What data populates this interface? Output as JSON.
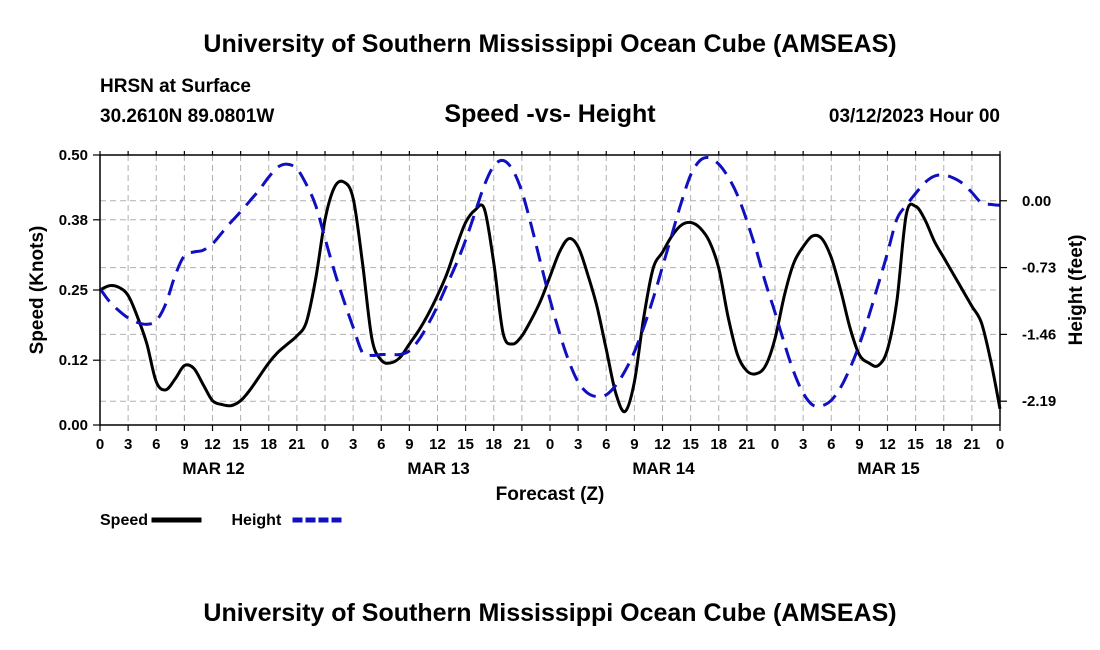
{
  "header": {
    "title": "University of Southern Mississippi Ocean Cube (AMSEAS)",
    "station": "HRSN at Surface",
    "coords": "30.2610N  89.0801W",
    "subtitle": "Speed -vs- Height",
    "datetime": "03/12/2023 Hour 00"
  },
  "footer": {
    "title": "University of Southern Mississippi Ocean Cube (AMSEAS)"
  },
  "colors": {
    "speed": "#000000",
    "height": "#1010c0",
    "grid": "#b0b0b0"
  },
  "chart_data": {
    "type": "line",
    "title": "Speed -vs- Height",
    "xlabel": "Forecast (Z)",
    "ylabel": "Speed (Knots)",
    "y2label": "Height (feet)",
    "xlim": [
      0,
      96
    ],
    "ylim": [
      0,
      0.5
    ],
    "y2lim": [
      -2.45,
      0.5
    ],
    "x_ticks": [
      0,
      3,
      6,
      9,
      12,
      15,
      18,
      21,
      24,
      27,
      30,
      33,
      36,
      39,
      42,
      45,
      48,
      51,
      54,
      57,
      60,
      63,
      66,
      69,
      72,
      75,
      78,
      81,
      84,
      87,
      90,
      93,
      96
    ],
    "x_tick_labels": [
      "0",
      "3",
      "6",
      "9",
      "12",
      "15",
      "18",
      "21",
      "0",
      "3",
      "6",
      "9",
      "12",
      "15",
      "18",
      "21",
      "0",
      "3",
      "6",
      "9",
      "12",
      "15",
      "18",
      "21",
      "0",
      "3",
      "6",
      "9",
      "12",
      "15",
      "18",
      "21",
      "0"
    ],
    "day_labels": [
      {
        "label": "MAR 12",
        "x": 12
      },
      {
        "label": "MAR 13",
        "x": 36
      },
      {
        "label": "MAR 14",
        "x": 60
      },
      {
        "label": "MAR 15",
        "x": 84
      }
    ],
    "y_ticks": [
      0.0,
      0.12,
      0.25,
      0.38,
      0.5
    ],
    "y_tick_labels": [
      "0.00",
      "0.12",
      "0.25",
      "0.38",
      "0.50"
    ],
    "y2_ticks": [
      0.0,
      -0.73,
      -1.46,
      -2.19
    ],
    "y2_tick_labels": [
      "0.00",
      "-0.73",
      "-1.46",
      "-2.19"
    ],
    "series": [
      {
        "name": "Speed",
        "axis": "left",
        "style": "solid",
        "x": [
          0,
          1,
          2,
          3,
          4,
          5,
          6,
          7,
          8,
          9,
          10,
          11,
          12,
          13,
          14,
          15,
          16,
          17,
          18,
          19,
          20,
          21,
          22,
          23,
          24,
          25,
          26,
          27,
          28,
          29,
          30,
          31,
          32,
          33,
          34,
          35,
          36,
          37,
          38,
          39,
          40,
          41,
          42,
          43,
          44,
          45,
          46,
          47,
          48,
          49,
          50,
          51,
          52,
          53,
          54,
          55,
          56,
          57,
          58,
          59,
          60,
          61,
          62,
          63,
          64,
          65,
          66,
          67,
          68,
          69,
          70,
          71,
          72,
          73,
          74,
          75,
          76,
          77,
          78,
          79,
          80,
          81,
          82,
          83,
          84,
          85,
          86,
          87,
          88,
          89,
          90,
          91,
          92,
          93,
          94,
          95,
          96
        ],
        "values": [
          0.25,
          0.258,
          0.255,
          0.24,
          0.2,
          0.15,
          0.08,
          0.065,
          0.085,
          0.11,
          0.105,
          0.075,
          0.045,
          0.038,
          0.036,
          0.045,
          0.065,
          0.09,
          0.115,
          0.135,
          0.15,
          0.165,
          0.19,
          0.27,
          0.38,
          0.44,
          0.45,
          0.42,
          0.3,
          0.16,
          0.12,
          0.115,
          0.125,
          0.15,
          0.175,
          0.205,
          0.24,
          0.28,
          0.33,
          0.375,
          0.398,
          0.4,
          0.3,
          0.17,
          0.15,
          0.165,
          0.195,
          0.23,
          0.275,
          0.32,
          0.345,
          0.33,
          0.28,
          0.22,
          0.14,
          0.06,
          0.025,
          0.08,
          0.2,
          0.29,
          0.32,
          0.35,
          0.37,
          0.375,
          0.365,
          0.34,
          0.29,
          0.2,
          0.13,
          0.1,
          0.095,
          0.11,
          0.16,
          0.24,
          0.3,
          0.33,
          0.35,
          0.345,
          0.31,
          0.25,
          0.18,
          0.13,
          0.115,
          0.11,
          0.14,
          0.23,
          0.39,
          0.405,
          0.38,
          0.34,
          0.31,
          0.28,
          0.25,
          0.22,
          0.19,
          0.12,
          0.03
        ],
        "color_key": "speed"
      },
      {
        "name": "Height",
        "axis": "right",
        "style": "dashed",
        "x": [
          0,
          1,
          2,
          3,
          4,
          5,
          6,
          7,
          8,
          9,
          10,
          11,
          12,
          13,
          14,
          15,
          16,
          17,
          18,
          19,
          20,
          21,
          22,
          23,
          24,
          25,
          26,
          27,
          28,
          29,
          30,
          31,
          32,
          33,
          34,
          35,
          36,
          37,
          38,
          39,
          40,
          41,
          42,
          43,
          44,
          45,
          46,
          47,
          48,
          49,
          50,
          51,
          52,
          53,
          54,
          55,
          56,
          57,
          58,
          59,
          60,
          61,
          62,
          63,
          64,
          65,
          66,
          67,
          68,
          69,
          70,
          71,
          72,
          73,
          74,
          75,
          76,
          77,
          78,
          79,
          80,
          81,
          82,
          83,
          84,
          85,
          86,
          87,
          88,
          89,
          90,
          91,
          92,
          93,
          94,
          95,
          96
        ],
        "values": [
          -0.96,
          -1.1,
          -1.2,
          -1.28,
          -1.33,
          -1.35,
          -1.31,
          -1.13,
          -0.82,
          -0.6,
          -0.56,
          -0.54,
          -0.47,
          -0.35,
          -0.23,
          -0.12,
          0.0,
          0.12,
          0.26,
          0.37,
          0.4,
          0.35,
          0.18,
          -0.05,
          -0.41,
          -0.77,
          -1.09,
          -1.38,
          -1.66,
          -1.69,
          -1.68,
          -1.68,
          -1.68,
          -1.64,
          -1.52,
          -1.35,
          -1.15,
          -0.92,
          -0.69,
          -0.43,
          -0.13,
          0.17,
          0.38,
          0.44,
          0.34,
          0.1,
          -0.27,
          -0.68,
          -1.08,
          -1.44,
          -1.75,
          -1.98,
          -2.1,
          -2.14,
          -2.12,
          -2.02,
          -1.86,
          -1.65,
          -1.38,
          -1.07,
          -0.72,
          -0.37,
          -0.02,
          0.28,
          0.44,
          0.47,
          0.4,
          0.26,
          0.06,
          -0.22,
          -0.54,
          -0.9,
          -1.22,
          -1.56,
          -1.87,
          -2.1,
          -2.23,
          -2.24,
          -2.18,
          -2.04,
          -1.83,
          -1.57,
          -1.26,
          -0.92,
          -0.57,
          -0.2,
          -0.05,
          0.08,
          0.2,
          0.27,
          0.28,
          0.25,
          0.19,
          0.09,
          -0.02,
          -0.04,
          -0.05
        ],
        "color_key": "height"
      }
    ],
    "legend": [
      {
        "label": "Speed",
        "style": "solid",
        "color_key": "speed"
      },
      {
        "label": "Height",
        "style": "dashed",
        "color_key": "height"
      }
    ],
    "legend_position": "bottom-left",
    "grid": true
  }
}
